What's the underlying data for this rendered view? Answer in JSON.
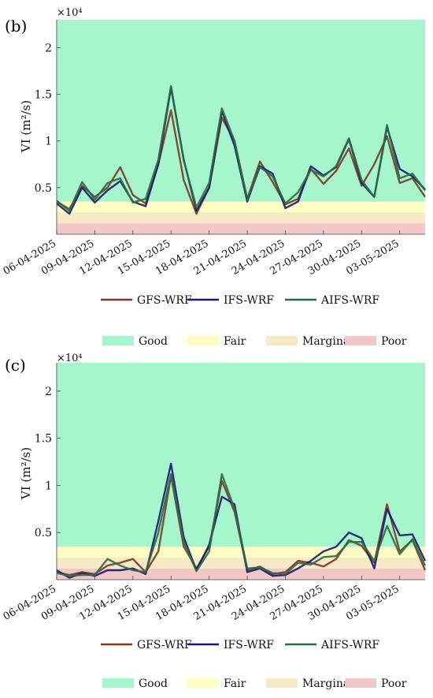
{
  "colors": {
    "good": "#a6f5cd",
    "fair": "#fdfdc3",
    "marginal": "#f6e9c8",
    "poor": "#f2c7c7",
    "gfs": "#7a3b22",
    "ifs": "#1a1a6e",
    "aifs": "#2e6b45"
  },
  "legend": {
    "series": [
      "GFS-WRF",
      "IFS-WRF",
      "AIFS-WRF"
    ],
    "categories": [
      "Good",
      "Fair",
      "Marginal",
      "Poor"
    ]
  },
  "chart_data": [
    {
      "type": "line",
      "panel": "(b)",
      "ylabel": "VI (m²/s)",
      "exponent_label": "×10⁴",
      "ylim": [
        0,
        2.3
      ],
      "yticks": [
        "0.5",
        "1",
        "1.5",
        "2"
      ],
      "xtick_labels": [
        "06-04-2025",
        "09-04-2025",
        "12-04-2025",
        "15-04-2025",
        "18-04-2025",
        "21-04-2025",
        "24-04-2025",
        "27-04-2025",
        "30-04-2025",
        "03-05-2025"
      ],
      "bands": [
        {
          "name": "Poor",
          "from": 0,
          "to": 0.1175
        },
        {
          "name": "Marginal",
          "from": 0.1175,
          "to": 0.235
        },
        {
          "name": "Fair",
          "from": 0.235,
          "to": 0.35
        },
        {
          "name": "Good",
          "from": 0.35,
          "to": 2.3
        }
      ],
      "series": [
        {
          "name": "GFS-WRF",
          "values": [
            0.35,
            0.27,
            0.52,
            0.4,
            0.5,
            0.72,
            0.42,
            0.33,
            0.75,
            1.33,
            0.58,
            0.22,
            0.5,
            1.25,
            1.0,
            0.38,
            0.78,
            0.56,
            0.32,
            0.38,
            0.7,
            0.54,
            0.68,
            0.92,
            0.52,
            0.75,
            1.05,
            0.55,
            0.6,
            0.4
          ]
        },
        {
          "name": "IFS-WRF",
          "values": [
            0.33,
            0.22,
            0.5,
            0.34,
            0.47,
            0.57,
            0.35,
            0.3,
            0.75,
            1.57,
            0.8,
            0.25,
            0.5,
            1.32,
            0.95,
            0.35,
            0.73,
            0.65,
            0.28,
            0.35,
            0.73,
            0.63,
            0.72,
            1.02,
            0.55,
            0.4,
            1.15,
            0.7,
            0.62,
            0.48
          ]
        },
        {
          "name": "AIFS-WRF",
          "values": [
            0.36,
            0.25,
            0.56,
            0.37,
            0.55,
            0.6,
            0.34,
            0.38,
            0.8,
            1.59,
            0.79,
            0.29,
            0.55,
            1.35,
            1.0,
            0.37,
            0.72,
            0.62,
            0.33,
            0.45,
            0.69,
            0.62,
            0.73,
            1.03,
            0.58,
            0.4,
            1.17,
            0.6,
            0.65,
            0.47
          ]
        }
      ]
    },
    {
      "type": "line",
      "panel": "(c)",
      "ylabel": "VI (m²/s)",
      "exponent_label": "×10⁴",
      "ylim": [
        0,
        2.3
      ],
      "yticks": [
        "0.5",
        "1",
        "1.5",
        "2"
      ],
      "xtick_labels": [
        "06-04-2025",
        "09-04-2025",
        "12-04-2025",
        "15-04-2025",
        "18-04-2025",
        "21-04-2025",
        "24-04-2025",
        "27-04-2025",
        "30-04-2025",
        "03-05-2025"
      ],
      "bands": [
        {
          "name": "Poor",
          "from": 0,
          "to": 0.1175
        },
        {
          "name": "Marginal",
          "from": 0.1175,
          "to": 0.235
        },
        {
          "name": "Fair",
          "from": 0.235,
          "to": 0.35
        },
        {
          "name": "Good",
          "from": 0.35,
          "to": 2.3
        }
      ],
      "series": [
        {
          "name": "GFS-WRF",
          "values": [
            0.08,
            0.05,
            0.08,
            0.06,
            0.15,
            0.18,
            0.22,
            0.08,
            0.3,
            1.1,
            0.35,
            0.12,
            0.35,
            1.05,
            0.72,
            0.1,
            0.14,
            0.06,
            0.08,
            0.2,
            0.18,
            0.14,
            0.22,
            0.42,
            0.36,
            0.18,
            0.8,
            0.3,
            0.42,
            0.1
          ]
        },
        {
          "name": "IFS-WRF",
          "values": [
            0.1,
            0.02,
            0.07,
            0.04,
            0.1,
            0.1,
            0.12,
            0.06,
            0.62,
            1.23,
            0.45,
            0.1,
            0.37,
            0.88,
            0.8,
            0.08,
            0.12,
            0.04,
            0.05,
            0.12,
            0.2,
            0.3,
            0.35,
            0.5,
            0.44,
            0.12,
            0.75,
            0.47,
            0.48,
            0.2
          ]
        },
        {
          "name": "AIFS-WRF",
          "values": [
            0.07,
            0.04,
            0.05,
            0.05,
            0.22,
            0.15,
            0.1,
            0.08,
            0.5,
            1.12,
            0.4,
            0.09,
            0.3,
            1.12,
            0.75,
            0.12,
            0.13,
            0.07,
            0.06,
            0.18,
            0.16,
            0.24,
            0.25,
            0.4,
            0.4,
            0.2,
            0.57,
            0.27,
            0.43,
            0.15
          ]
        }
      ]
    }
  ]
}
